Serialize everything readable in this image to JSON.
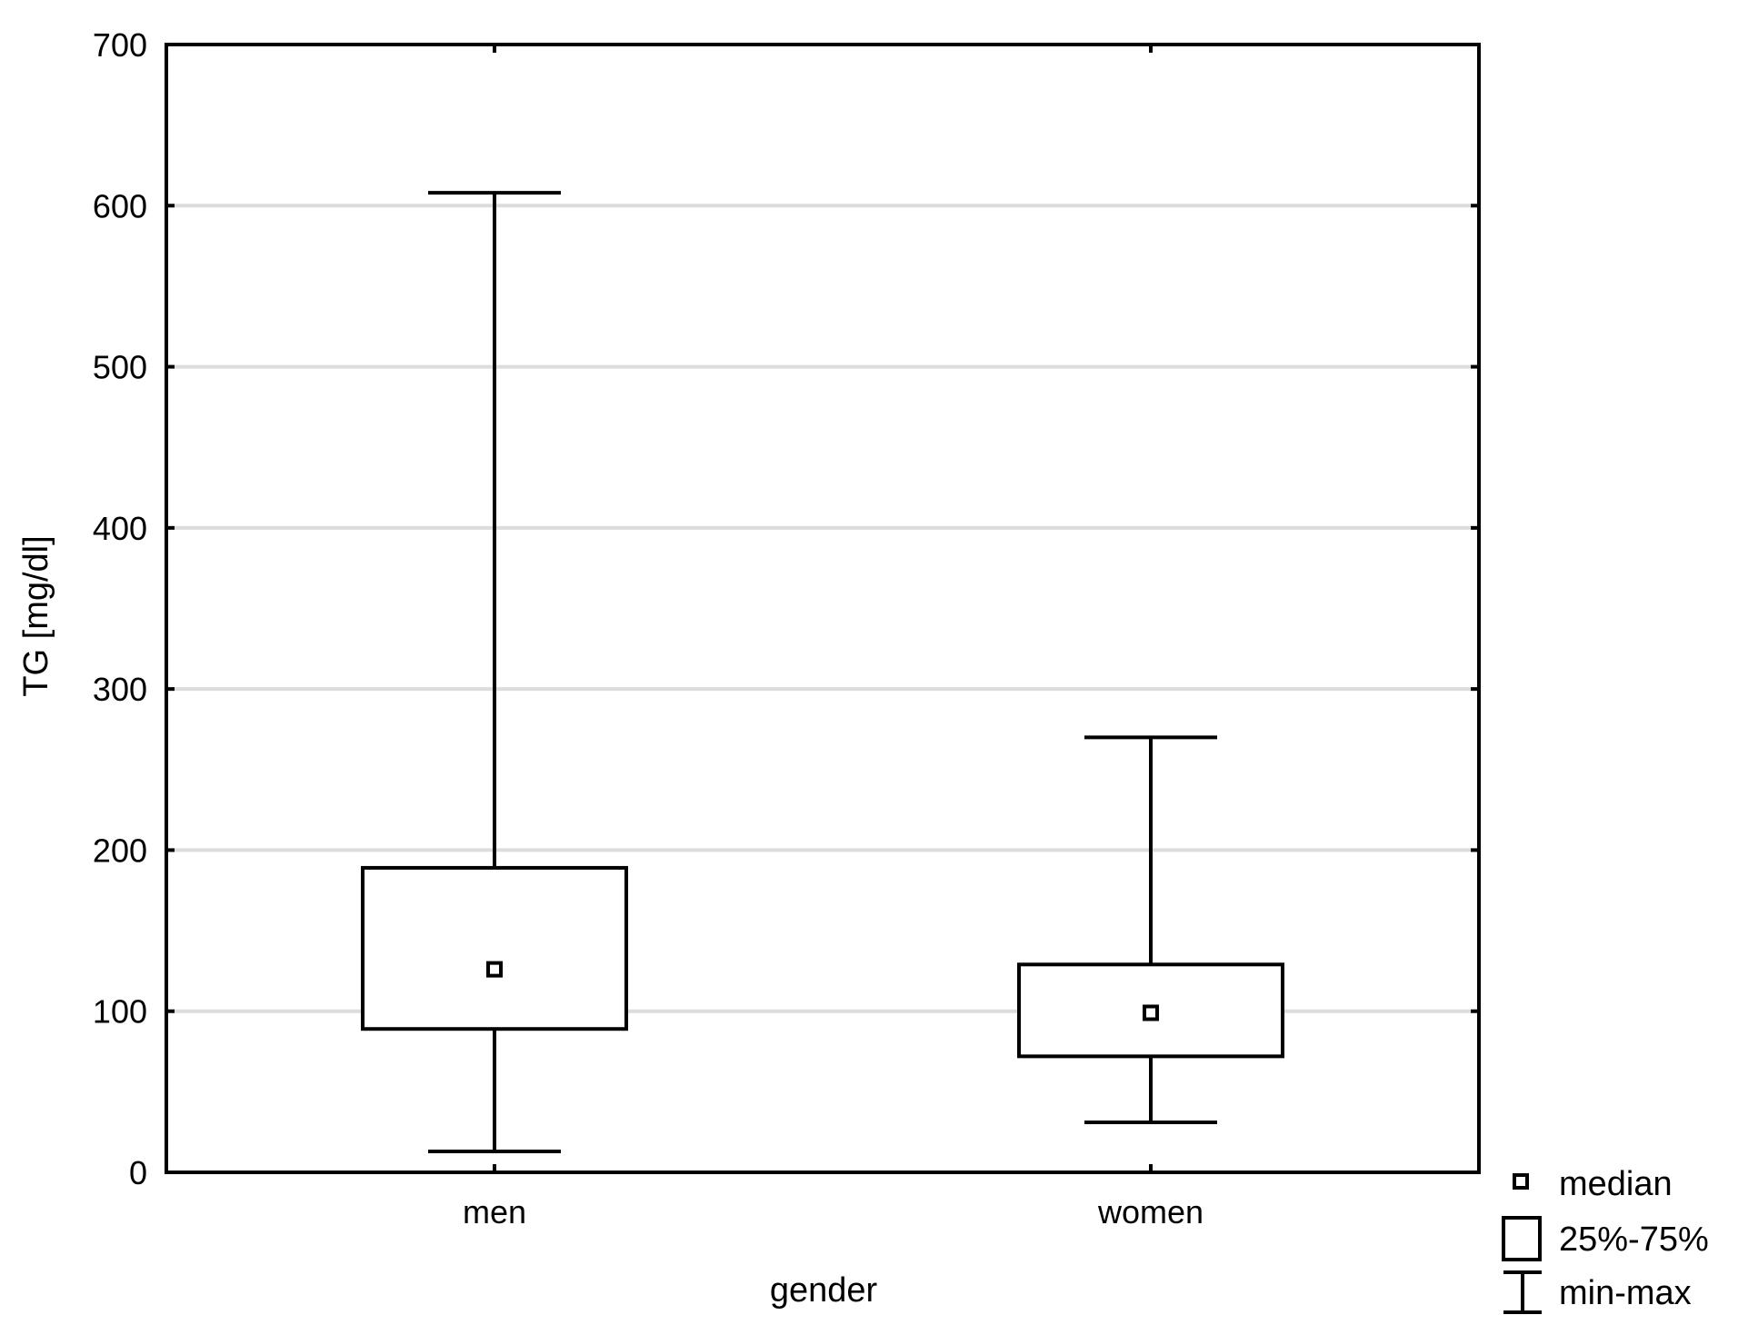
{
  "chart_data": {
    "type": "boxplot",
    "xlabel": "gender",
    "ylabel": "TG [mg/dl]",
    "ylim": [
      0,
      700
    ],
    "yticks": [
      0,
      100,
      200,
      300,
      400,
      500,
      600,
      700
    ],
    "grid": true,
    "legend_position": "bottom-right outside",
    "categories": [
      "men",
      "women"
    ],
    "boxes": [
      {
        "category": "men",
        "min": 13,
        "q1": 89,
        "median": 126,
        "q3": 189,
        "max": 608
      },
      {
        "category": "women",
        "min": 31,
        "q1": 72,
        "median": 99,
        "q3": 129,
        "max": 270
      }
    ],
    "legend": [
      {
        "symbol": "median-marker",
        "label": "median"
      },
      {
        "symbol": "box",
        "label": "25%-75%"
      },
      {
        "symbol": "whisker",
        "label": "min-max"
      }
    ]
  }
}
